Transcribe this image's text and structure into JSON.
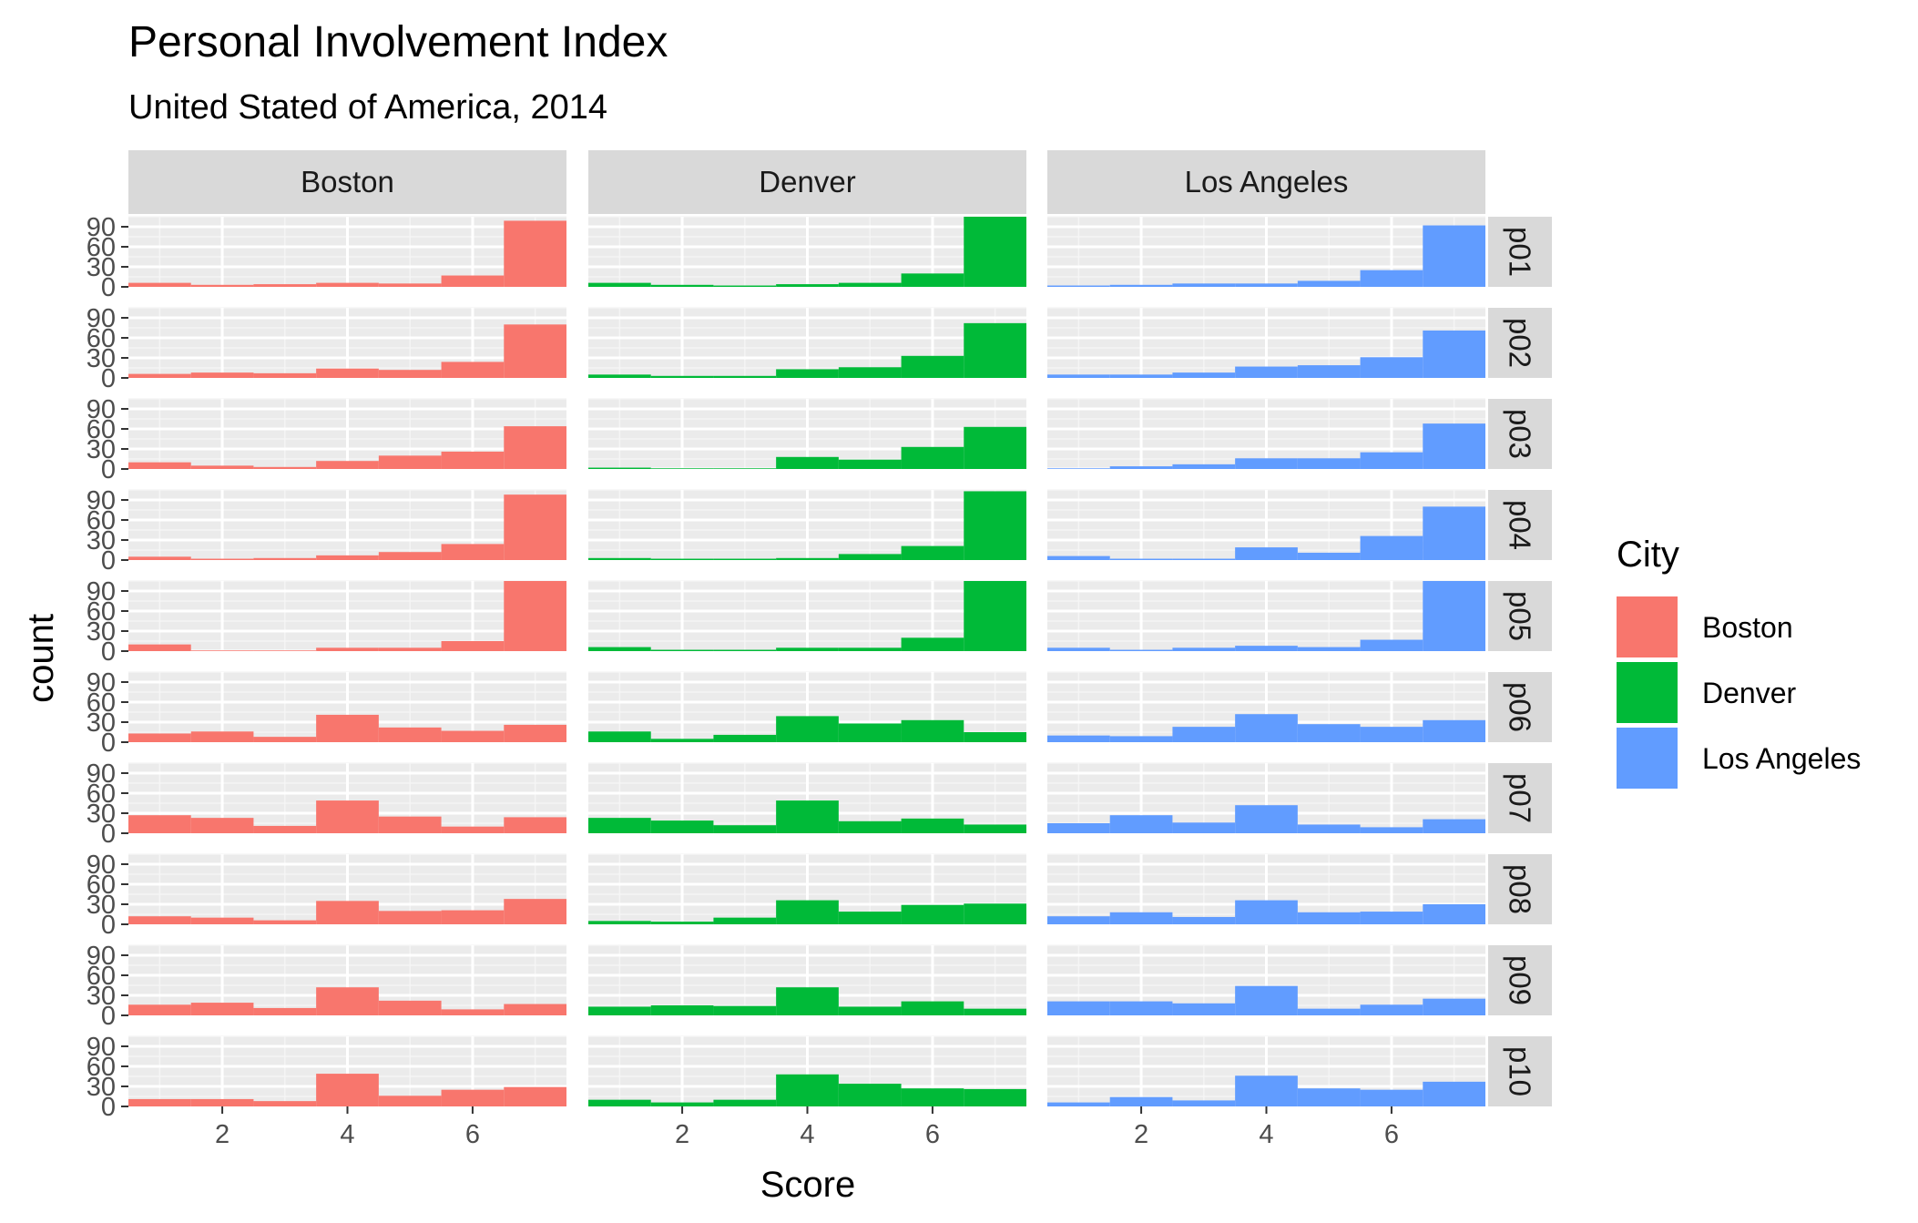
{
  "chart_data": {
    "type": "bar",
    "title": "Personal Involvement Index",
    "subtitle": "United Stated of America, 2014",
    "xlabel": "Score",
    "ylabel": "count",
    "x_bins": [
      1,
      2,
      3,
      4,
      5,
      6,
      7
    ],
    "xlim": [
      0.5,
      7.5
    ],
    "ylim": [
      0,
      105
    ],
    "x_ticks": [
      2,
      4,
      6
    ],
    "y_ticks": [
      0,
      30,
      60,
      90
    ],
    "facet_cols": [
      "Boston",
      "Denver",
      "Los Angeles"
    ],
    "facet_rows": [
      "p01",
      "p02",
      "p03",
      "p04",
      "p05",
      "p06",
      "p07",
      "p08",
      "p09",
      "p10"
    ],
    "legend": {
      "title": "City",
      "entries": [
        {
          "label": "Boston",
          "color": "#F8766D"
        },
        {
          "label": "Denver",
          "color": "#00BA38"
        },
        {
          "label": "Los Angeles",
          "color": "#619CFF"
        }
      ]
    },
    "series": [
      {
        "city": "Boston",
        "rows": [
          [
            6,
            3,
            4,
            6,
            5,
            17,
            99
          ],
          [
            6,
            8,
            7,
            14,
            12,
            24,
            80
          ],
          [
            10,
            5,
            3,
            12,
            20,
            26,
            64
          ],
          [
            5,
            2,
            3,
            7,
            12,
            24,
            98
          ],
          [
            10,
            1,
            1,
            5,
            5,
            15,
            111
          ],
          [
            13,
            16,
            8,
            41,
            22,
            17,
            26
          ],
          [
            27,
            23,
            11,
            49,
            25,
            10,
            24
          ],
          [
            12,
            10,
            6,
            35,
            20,
            21,
            38
          ],
          [
            16,
            19,
            11,
            42,
            22,
            9,
            17
          ],
          [
            11,
            11,
            8,
            49,
            16,
            25,
            29
          ]
        ]
      },
      {
        "city": "Denver",
        "rows": [
          [
            6,
            3,
            2,
            4,
            6,
            20,
            106
          ],
          [
            5,
            3,
            3,
            13,
            16,
            33,
            82
          ],
          [
            2,
            1,
            1,
            18,
            14,
            33,
            63
          ],
          [
            3,
            2,
            2,
            3,
            9,
            21,
            103
          ],
          [
            6,
            2,
            2,
            5,
            5,
            20,
            106
          ],
          [
            16,
            5,
            11,
            39,
            28,
            33,
            15
          ],
          [
            23,
            19,
            12,
            49,
            18,
            22,
            13
          ],
          [
            5,
            4,
            10,
            36,
            19,
            29,
            31
          ],
          [
            13,
            15,
            14,
            42,
            13,
            21,
            10
          ],
          [
            10,
            6,
            10,
            48,
            34,
            27,
            26
          ]
        ]
      },
      {
        "city": "Los Angeles",
        "rows": [
          [
            2,
            3,
            5,
            5,
            9,
            25,
            92
          ],
          [
            5,
            5,
            8,
            17,
            19,
            31,
            71
          ],
          [
            1,
            4,
            7,
            16,
            16,
            25,
            68
          ],
          [
            6,
            2,
            2,
            19,
            11,
            36,
            80
          ],
          [
            5,
            2,
            5,
            8,
            6,
            17,
            105
          ],
          [
            10,
            9,
            23,
            42,
            27,
            23,
            33
          ],
          [
            15,
            27,
            16,
            42,
            13,
            9,
            21
          ],
          [
            12,
            18,
            11,
            36,
            18,
            19,
            30
          ],
          [
            21,
            21,
            18,
            44,
            10,
            16,
            25
          ],
          [
            6,
            14,
            9,
            46,
            27,
            25,
            37
          ]
        ]
      }
    ]
  }
}
